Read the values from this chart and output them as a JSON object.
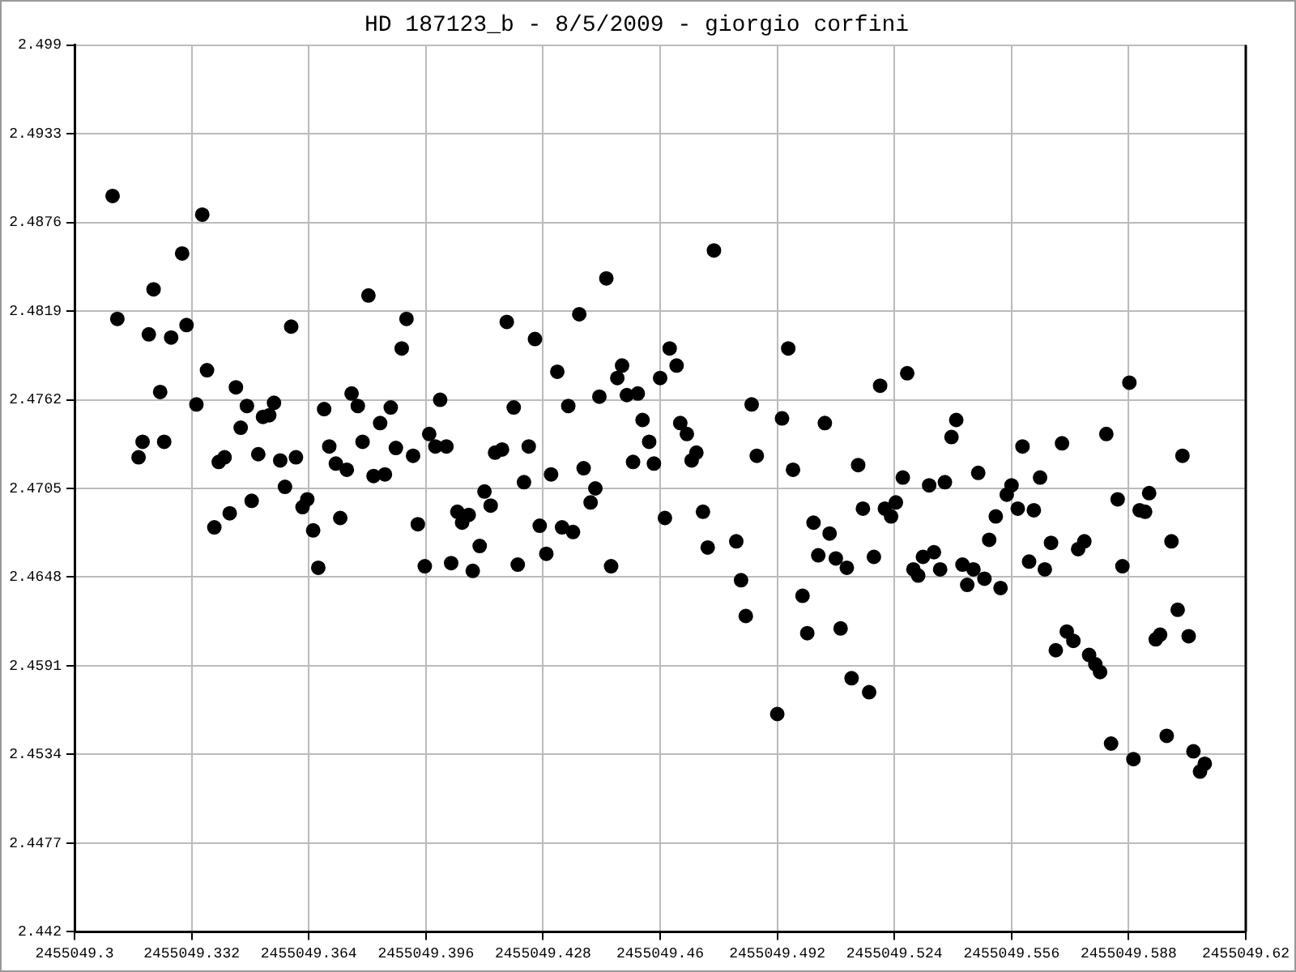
{
  "chart_data": {
    "type": "scatter",
    "title": "HD 187123_b - 8/5/2009 - giorgio corfini",
    "color": "#000000",
    "marker": "circle",
    "grid": true,
    "xlim": [
      2455049.3,
      2455049.62
    ],
    "xticks": [
      2455049.3,
      2455049.332,
      2455049.364,
      2455049.396,
      2455049.428,
      2455049.46,
      2455049.492,
      2455049.524,
      2455049.556,
      2455049.588,
      2455049.62
    ],
    "ylim": [
      2.442,
      2.499
    ],
    "yticks": [
      2.442,
      2.4477,
      2.4534,
      2.4591,
      2.4648,
      2.4705,
      2.4762,
      2.4819,
      2.4876,
      2.4933,
      2.499
    ],
    "x": [
      2455049.3104,
      2455049.3349,
      2455049.3294,
      2455049.3216,
      2455049.3117,
      2455049.3306,
      2455049.3203,
      2455049.3264,
      2455049.3592,
      2455049.3803,
      2455049.3362,
      2455049.3234,
      2455049.3441,
      2455049.3333,
      2455049.3471,
      2455049.3545,
      2455049.3515,
      2455049.3532,
      2455049.3454,
      2455049.3186,
      2455049.3245,
      2455049.3175,
      2455049.3394,
      2455049.341,
      2455049.3502,
      2455049.3562,
      2455049.3605,
      2455049.3575,
      2455049.3682,
      2455049.3757,
      2455049.3774,
      2455049.3835,
      2455049.3696,
      2455049.3787,
      2455049.3714,
      2455049.3744,
      2455049.3817,
      2455049.3848,
      2455049.3484,
      2455049.3424,
      2455049.3382,
      2455049.3636,
      2455049.3623,
      2455049.3726,
      2455049.3652,
      2455049.3666,
      2455049.3907,
      2455049.3894,
      2455049.3864,
      2455049.3878,
      2455049.3925,
      2455049.3999,
      2455049.3969,
      2455049.3986,
      2455049.4016,
      2455049.3938,
      2455049.3957,
      2455049.4029,
      2455049.4088,
      2455049.4107,
      2455049.4046,
      2455049.4059,
      2455049.4077,
      2455049.412,
      2455049.4137,
      2455049.4149,
      2455049.4168,
      2455049.4181,
      2455049.42,
      2455049.4241,
      2455049.4228,
      2455049.4258,
      2455049.4211,
      2455049.4289,
      2455049.4271,
      2455049.4302,
      2455049.4319,
      2455049.4349,
      2455049.4332,
      2455049.4362,
      2455049.4379,
      2455049.4453,
      2455049.4391,
      2455049.441,
      2455049.4423,
      2455049.4434,
      2455049.4466,
      2455049.4483,
      2455049.4496,
      2455049.4509,
      2455049.4539,
      2455049.4552,
      2455049.457,
      2455049.4526,
      2455049.4583,
      2455049.46,
      2455049.4626,
      2455049.4645,
      2455049.4613,
      2455049.4655,
      2455049.4747,
      2455049.4673,
      2455049.4699,
      2455049.4686,
      2455049.485,
      2455049.4864,
      2455049.4717,
      2455049.473,
      2455049.4808,
      2455049.4821,
      2455049.4834,
      2455049.4933,
      2455049.495,
      2455049.4963,
      2455049.492,
      2455049.4989,
      2455049.5002,
      2455049.5019,
      2455049.5032,
      2455049.505,
      2455049.5063,
      2455049.508,
      2455049.5093,
      2455049.511,
      2455049.5123,
      2455049.5141,
      2455049.5154,
      2455049.5171,
      2455049.5184,
      2455049.5201,
      2455049.5214,
      2455049.5231,
      2455049.5244,
      2455049.5275,
      2455049.5263,
      2455049.5292,
      2455049.5305,
      2455049.5318,
      2455049.5335,
      2455049.5348,
      2455049.5365,
      2455049.5378,
      2455049.5396,
      2455049.5409,
      2455049.5426,
      2455049.5439,
      2455049.5456,
      2455049.5469,
      2455049.5486,
      2455049.553,
      2455049.5499,
      2455049.5517,
      2455049.5547,
      2455049.556,
      2455049.5577,
      2455049.559,
      2455049.5621,
      2455049.5608,
      2455049.5638,
      2455049.5651,
      2455049.5668,
      2455049.5698,
      2455049.5681,
      2455049.5711,
      2455049.5729,
      2455049.5742,
      2455049.5759,
      2455049.5772,
      2455049.5789,
      2455049.5802,
      2455049.5819,
      2455049.5832,
      2455049.585,
      2455049.5863,
      2455049.5882,
      2455049.5893,
      2455049.591,
      2455049.5925,
      2455049.5936,
      2455049.5954,
      2455049.5966,
      2455049.5984,
      2455049.5997,
      2455049.6014,
      2455049.6027,
      2455049.6044,
      2455049.6057,
      2455049.6075,
      2455049.6088
    ],
    "values": [
      2.4893,
      2.4881,
      2.4856,
      2.4833,
      2.4814,
      2.481,
      2.4804,
      2.4802,
      2.4809,
      2.4829,
      2.4781,
      2.4767,
      2.477,
      2.4759,
      2.4758,
      2.476,
      2.4751,
      2.4752,
      2.4744,
      2.4735,
      2.4735,
      2.4725,
      2.4722,
      2.4725,
      2.4727,
      2.4723,
      2.4725,
      2.4706,
      2.4756,
      2.4766,
      2.4758,
      2.4747,
      2.4732,
      2.4735,
      2.4721,
      2.4717,
      2.4713,
      2.4714,
      2.4697,
      2.4689,
      2.468,
      2.4698,
      2.4693,
      2.4686,
      2.4678,
      2.4654,
      2.4814,
      2.4795,
      2.4757,
      2.4731,
      2.4726,
      2.4762,
      2.474,
      2.4732,
      2.4732,
      2.4682,
      2.4655,
      2.4657,
      2.4652,
      2.4668,
      2.469,
      2.4683,
      2.4688,
      2.4703,
      2.4694,
      2.4728,
      2.473,
      2.4812,
      2.4757,
      2.4732,
      2.4709,
      2.4801,
      2.4656,
      2.4663,
      2.4681,
      2.4714,
      2.478,
      2.4758,
      2.468,
      2.4677,
      2.4817,
      2.484,
      2.4718,
      2.4696,
      2.4705,
      2.4764,
      2.4655,
      2.4776,
      2.4784,
      2.4765,
      2.4766,
      2.4749,
      2.4735,
      2.4722,
      2.4721,
      2.4776,
      2.4795,
      2.4784,
      2.4686,
      2.4747,
      2.4858,
      2.474,
      2.4728,
      2.4723,
      2.4759,
      2.4726,
      2.469,
      2.4667,
      2.4671,
      2.4646,
      2.4623,
      2.475,
      2.4795,
      2.4717,
      2.456,
      2.4636,
      2.4612,
      2.4683,
      2.4662,
      2.4747,
      2.4676,
      2.466,
      2.4615,
      2.4654,
      2.4583,
      2.472,
      2.4692,
      2.4574,
      2.4661,
      2.4771,
      2.4692,
      2.4687,
      2.4696,
      2.4779,
      2.4712,
      2.4653,
      2.4649,
      2.4661,
      2.4707,
      2.4664,
      2.4653,
      2.4709,
      2.4738,
      2.4749,
      2.4656,
      2.4643,
      2.4653,
      2.4715,
      2.4647,
      2.4641,
      2.4672,
      2.4687,
      2.4701,
      2.4707,
      2.4692,
      2.4732,
      2.4691,
      2.4658,
      2.4712,
      2.4653,
      2.467,
      2.4734,
      2.4601,
      2.4613,
      2.4607,
      2.4666,
      2.4671,
      2.4598,
      2.4592,
      2.4587,
      2.474,
      2.4541,
      2.4698,
      2.4655,
      2.4773,
      2.4531,
      2.4691,
      2.469,
      2.4702,
      2.4608,
      2.4611,
      2.4546,
      2.4671,
      2.4627,
      2.4726,
      2.461,
      2.4536,
      2.4523,
      2.4528
    ]
  }
}
